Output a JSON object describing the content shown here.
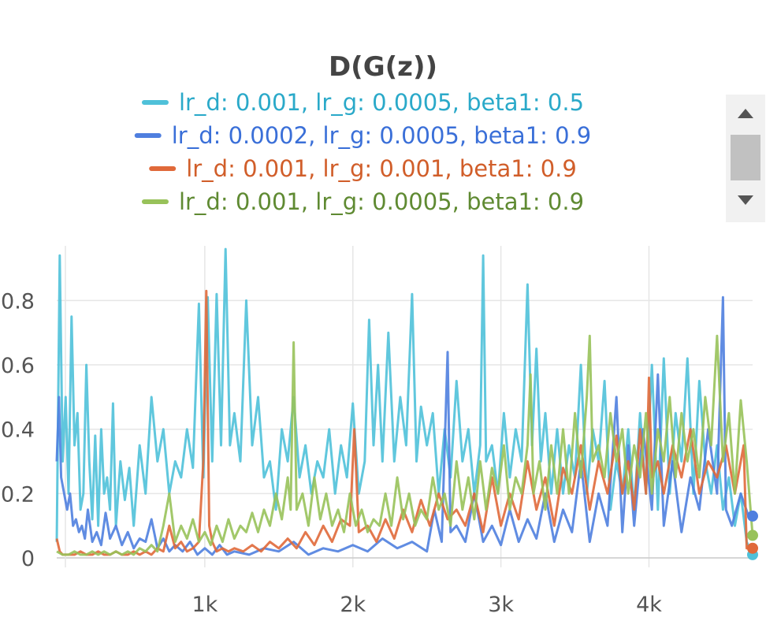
{
  "chart_data": {
    "type": "line",
    "title": "D(G(z))",
    "xlabel": "",
    "ylabel": "",
    "xlim": [
      0,
      4700
    ],
    "ylim": [
      0,
      0.97
    ],
    "xticks": [
      1000,
      2000,
      3000,
      4000
    ],
    "xtick_labels": [
      "1k",
      "2k",
      "3k",
      "4k"
    ],
    "yticks": [
      0,
      0.2,
      0.4,
      0.6,
      0.8
    ],
    "ytick_labels": [
      "0",
      "0.2",
      "0.4",
      "0.6",
      "0.8"
    ],
    "grid": true,
    "legend_position": "top-center",
    "series": [
      {
        "name": "lr_d: 0.001, lr_g: 0.0005, beta1: 0.5",
        "color": "#4fc1d9",
        "text_color": "#2aa9c9",
        "x": [
          0,
          20,
          40,
          60,
          80,
          100,
          120,
          140,
          160,
          180,
          200,
          220,
          240,
          260,
          280,
          300,
          320,
          340,
          360,
          380,
          400,
          430,
          460,
          490,
          520,
          560,
          600,
          640,
          680,
          720,
          760,
          800,
          840,
          880,
          920,
          960,
          990,
          1020,
          1050,
          1080,
          1110,
          1140,
          1170,
          1200,
          1240,
          1280,
          1320,
          1360,
          1400,
          1440,
          1480,
          1520,
          1560,
          1600,
          1640,
          1680,
          1720,
          1760,
          1800,
          1840,
          1880,
          1920,
          1960,
          2000,
          2040,
          2080,
          2110,
          2140,
          2170,
          2200,
          2240,
          2280,
          2320,
          2360,
          2400,
          2430,
          2460,
          2500,
          2540,
          2580,
          2620,
          2660,
          2700,
          2740,
          2780,
          2820,
          2860,
          2880,
          2900,
          2940,
          2980,
          3020,
          3060,
          3100,
          3140,
          3180,
          3210,
          3240,
          3270,
          3300,
          3340,
          3380,
          3420,
          3460,
          3500,
          3540,
          3580,
          3620,
          3660,
          3700,
          3740,
          3780,
          3820,
          3860,
          3900,
          3940,
          3980,
          4020,
          4060,
          4100,
          4140,
          4180,
          4220,
          4260,
          4300,
          4340,
          4380,
          4420,
          4460,
          4500,
          4540,
          4580,
          4620,
          4660,
          4700
        ],
        "values": [
          0.05,
          0.94,
          0.3,
          0.5,
          0.2,
          0.75,
          0.35,
          0.45,
          0.15,
          0.2,
          0.6,
          0.3,
          0.12,
          0.38,
          0.1,
          0.4,
          0.2,
          0.25,
          0.15,
          0.48,
          0.1,
          0.3,
          0.18,
          0.28,
          0.1,
          0.35,
          0.2,
          0.5,
          0.3,
          0.4,
          0.2,
          0.3,
          0.25,
          0.4,
          0.28,
          0.79,
          0.25,
          0.81,
          0.3,
          0.82,
          0.35,
          0.96,
          0.35,
          0.45,
          0.3,
          0.8,
          0.35,
          0.5,
          0.25,
          0.3,
          0.15,
          0.4,
          0.3,
          0.5,
          0.25,
          0.35,
          0.2,
          0.3,
          0.25,
          0.4,
          0.2,
          0.35,
          0.25,
          0.48,
          0.2,
          0.3,
          0.74,
          0.35,
          0.6,
          0.3,
          0.7,
          0.3,
          0.5,
          0.35,
          0.82,
          0.3,
          0.47,
          0.35,
          0.45,
          0.2,
          0.4,
          0.25,
          0.55,
          0.3,
          0.4,
          0.2,
          0.35,
          0.94,
          0.3,
          0.35,
          0.2,
          0.45,
          0.25,
          0.4,
          0.3,
          0.85,
          0.35,
          0.65,
          0.3,
          0.45,
          0.2,
          0.4,
          0.2,
          0.35,
          0.25,
          0.6,
          0.2,
          0.4,
          0.3,
          0.55,
          0.15,
          0.3,
          0.2,
          0.4,
          0.15,
          0.45,
          0.2,
          0.6,
          0.15,
          0.62,
          0.2,
          0.45,
          0.3,
          0.62,
          0.2,
          0.55,
          0.3,
          0.2,
          0.35,
          0.15,
          0.25,
          0.1,
          0.2,
          0.05,
          0.01
        ]
      },
      {
        "name": "lr_d: 0.0002, lr_g: 0.0005, beta1: 0.9",
        "color": "#4f7fdf",
        "text_color": "#3a6fd8",
        "x": [
          0,
          15,
          30,
          50,
          70,
          90,
          110,
          130,
          150,
          170,
          190,
          210,
          240,
          270,
          300,
          330,
          360,
          400,
          440,
          480,
          520,
          560,
          600,
          640,
          680,
          720,
          760,
          800,
          850,
          900,
          950,
          1000,
          1050,
          1100,
          1150,
          1200,
          1300,
          1400,
          1500,
          1600,
          1700,
          1800,
          1900,
          2000,
          2100,
          2200,
          2300,
          2400,
          2500,
          2550,
          2600,
          2640,
          2660,
          2700,
          2760,
          2820,
          2880,
          2940,
          3000,
          3060,
          3120,
          3180,
          3240,
          3300,
          3360,
          3420,
          3480,
          3540,
          3600,
          3660,
          3720,
          3780,
          3820,
          3860,
          3900,
          3960,
          4020,
          4060,
          4100,
          4160,
          4220,
          4280,
          4340,
          4400,
          4460,
          4500,
          4520,
          4560,
          4620,
          4680,
          4700
        ],
        "values": [
          0.3,
          0.5,
          0.25,
          0.2,
          0.15,
          0.2,
          0.1,
          0.12,
          0.08,
          0.1,
          0.06,
          0.15,
          0.05,
          0.08,
          0.04,
          0.14,
          0.06,
          0.1,
          0.04,
          0.08,
          0.03,
          0.06,
          0.05,
          0.12,
          0.03,
          0.06,
          0.02,
          0.04,
          0.02,
          0.05,
          0.01,
          0.03,
          0.01,
          0.04,
          0.01,
          0.02,
          0.01,
          0.03,
          0.02,
          0.05,
          0.01,
          0.03,
          0.02,
          0.04,
          0.02,
          0.06,
          0.03,
          0.05,
          0.02,
          0.15,
          0.05,
          0.64,
          0.08,
          0.1,
          0.05,
          0.2,
          0.05,
          0.1,
          0.04,
          0.15,
          0.05,
          0.12,
          0.06,
          0.2,
          0.05,
          0.15,
          0.08,
          0.3,
          0.05,
          0.2,
          0.1,
          0.5,
          0.08,
          0.35,
          0.1,
          0.4,
          0.15,
          0.57,
          0.1,
          0.3,
          0.08,
          0.25,
          0.15,
          0.4,
          0.2,
          0.81,
          0.15,
          0.1,
          0.2,
          0.12,
          0.13
        ]
      },
      {
        "name": "lr_d: 0.001, lr_g: 0.001, beta1: 0.9",
        "color": "#e0693a",
        "text_color": "#d15e2a",
        "x": [
          0,
          20,
          40,
          80,
          120,
          160,
          200,
          240,
          280,
          320,
          360,
          400,
          440,
          480,
          520,
          560,
          600,
          640,
          680,
          720,
          760,
          800,
          840,
          880,
          920,
          960,
          990,
          1010,
          1030,
          1050,
          1080,
          1120,
          1160,
          1200,
          1260,
          1320,
          1380,
          1440,
          1500,
          1560,
          1620,
          1680,
          1740,
          1800,
          1860,
          1920,
          1980,
          2010,
          2040,
          2100,
          2160,
          2220,
          2280,
          2340,
          2400,
          2460,
          2520,
          2580,
          2640,
          2700,
          2760,
          2820,
          2880,
          2940,
          3000,
          3060,
          3120,
          3180,
          3240,
          3300,
          3360,
          3420,
          3480,
          3540,
          3600,
          3660,
          3720,
          3780,
          3820,
          3860,
          3900,
          3940,
          3980,
          4000,
          4020,
          4060,
          4100,
          4160,
          4220,
          4280,
          4340,
          4400,
          4460,
          4520,
          4580,
          4640,
          4660,
          4700
        ],
        "values": [
          0.06,
          0.02,
          0.01,
          0.01,
          0.01,
          0.02,
          0.01,
          0.01,
          0.02,
          0.01,
          0.01,
          0.02,
          0.01,
          0.01,
          0.02,
          0.01,
          0.02,
          0.01,
          0.03,
          0.02,
          0.1,
          0.03,
          0.05,
          0.02,
          0.03,
          0.05,
          0.3,
          0.83,
          0.1,
          0.05,
          0.02,
          0.03,
          0.02,
          0.03,
          0.02,
          0.04,
          0.02,
          0.05,
          0.03,
          0.06,
          0.03,
          0.08,
          0.04,
          0.1,
          0.05,
          0.12,
          0.1,
          0.4,
          0.08,
          0.1,
          0.05,
          0.12,
          0.06,
          0.15,
          0.08,
          0.18,
          0.1,
          0.2,
          0.12,
          0.15,
          0.1,
          0.2,
          0.08,
          0.25,
          0.1,
          0.2,
          0.12,
          0.3,
          0.15,
          0.25,
          0.1,
          0.28,
          0.2,
          0.35,
          0.15,
          0.3,
          0.2,
          0.38,
          0.2,
          0.3,
          0.15,
          0.4,
          0.2,
          0.56,
          0.25,
          0.3,
          0.2,
          0.35,
          0.25,
          0.4,
          0.2,
          0.3,
          0.25,
          0.35,
          0.2,
          0.35,
          0.03,
          0.03
        ]
      },
      {
        "name": "lr_d: 0.001, lr_g: 0.0005, beta1: 0.9",
        "color": "#98c25a",
        "text_color": "#5f8a32",
        "x": [
          0,
          40,
          80,
          120,
          160,
          200,
          240,
          280,
          320,
          360,
          400,
          440,
          480,
          520,
          560,
          600,
          640,
          680,
          720,
          760,
          800,
          840,
          880,
          920,
          960,
          1000,
          1040,
          1080,
          1120,
          1160,
          1200,
          1240,
          1280,
          1320,
          1360,
          1400,
          1440,
          1480,
          1520,
          1560,
          1580,
          1600,
          1620,
          1660,
          1700,
          1740,
          1780,
          1820,
          1860,
          1900,
          1940,
          1980,
          2020,
          2060,
          2100,
          2140,
          2180,
          2220,
          2260,
          2300,
          2340,
          2380,
          2420,
          2460,
          2500,
          2540,
          2580,
          2620,
          2660,
          2700,
          2740,
          2780,
          2820,
          2860,
          2900,
          2940,
          2980,
          3020,
          3060,
          3100,
          3140,
          3180,
          3200,
          3220,
          3260,
          3300,
          3340,
          3380,
          3420,
          3460,
          3500,
          3540,
          3580,
          3600,
          3620,
          3660,
          3700,
          3740,
          3780,
          3820,
          3860,
          3900,
          3940,
          3980,
          4020,
          4060,
          4100,
          4140,
          4180,
          4220,
          4260,
          4300,
          4340,
          4380,
          4420,
          4460,
          4500,
          4540,
          4580,
          4620,
          4660,
          4700
        ],
        "values": [
          0.02,
          0.01,
          0.01,
          0.02,
          0.01,
          0.01,
          0.02,
          0.01,
          0.02,
          0.01,
          0.02,
          0.01,
          0.02,
          0.01,
          0.03,
          0.02,
          0.04,
          0.02,
          0.1,
          0.2,
          0.05,
          0.1,
          0.06,
          0.12,
          0.05,
          0.08,
          0.04,
          0.1,
          0.05,
          0.12,
          0.06,
          0.1,
          0.08,
          0.14,
          0.08,
          0.15,
          0.1,
          0.2,
          0.12,
          0.25,
          0.15,
          0.67,
          0.15,
          0.2,
          0.1,
          0.25,
          0.12,
          0.2,
          0.1,
          0.15,
          0.08,
          0.2,
          0.1,
          0.15,
          0.08,
          0.12,
          0.1,
          0.2,
          0.1,
          0.25,
          0.12,
          0.2,
          0.1,
          0.15,
          0.12,
          0.25,
          0.15,
          0.2,
          0.1,
          0.3,
          0.15,
          0.25,
          0.12,
          0.3,
          0.15,
          0.28,
          0.2,
          0.35,
          0.15,
          0.25,
          0.2,
          0.35,
          0.57,
          0.2,
          0.3,
          0.15,
          0.35,
          0.2,
          0.4,
          0.2,
          0.45,
          0.25,
          0.5,
          0.69,
          0.3,
          0.35,
          0.25,
          0.45,
          0.3,
          0.4,
          0.2,
          0.35,
          0.25,
          0.45,
          0.2,
          0.4,
          0.3,
          0.5,
          0.25,
          0.45,
          0.3,
          0.4,
          0.25,
          0.5,
          0.35,
          0.69,
          0.3,
          0.45,
          0.2,
          0.49,
          0.3,
          0.07
        ]
      }
    ]
  },
  "scrollbar": {
    "up_icon": "triangle-up-icon",
    "down_icon": "triangle-down-icon"
  }
}
